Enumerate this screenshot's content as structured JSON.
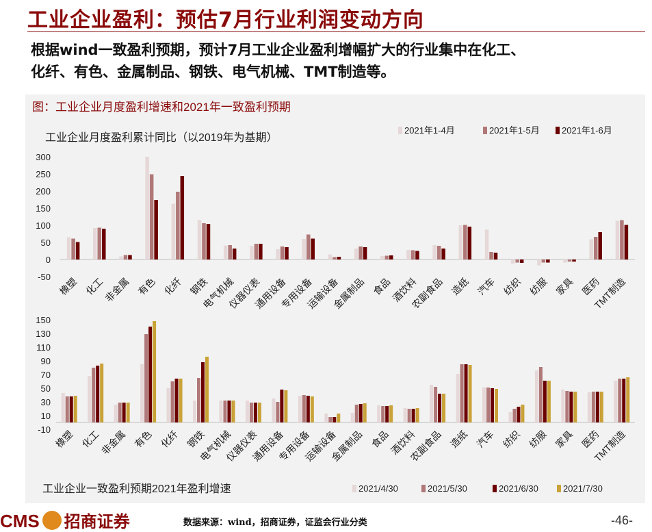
{
  "page": {
    "title": "工业企业盈利：预估7月行业利润变动方向",
    "subtitle_line1": "根据wind一致盈利预期，预计7月工业企业盈利增幅扩大的行业集中在化工、",
    "subtitle_line2": "化纤、有色、金属制品、钢铁、电气机械、TMT制造等。",
    "figure_title": "图：工业企业月度盈利增速和2021年一致盈利预期",
    "footer_logo_text": "CMS",
    "footer_logo_cn": "招商证券",
    "source": "数据来源：wind，招商证券，证监会行业分类",
    "page_number": "-46-"
  },
  "colors": {
    "title": "#8a0a0a",
    "s1": "#e6d8d8",
    "s2": "#b07878",
    "s3": "#6b0000",
    "s4": "#c9a238"
  },
  "chart_data": [
    {
      "type": "bar",
      "title": "工业企业月度盈利累计同比（以2019年为基期）",
      "categories": [
        "橡塑",
        "化工",
        "非金属",
        "有色",
        "化纤",
        "钢铁",
        "电气机械",
        "仪器仪表",
        "通用设备",
        "专用设备",
        "运输设备",
        "金属制品",
        "食品",
        "酒饮料",
        "农副食品",
        "造纸",
        "汽车",
        "纺织",
        "纺服",
        "家具",
        "医药",
        "TMT制造"
      ],
      "series": [
        {
          "name": "2021年1-4月",
          "values": [
            65,
            92,
            9,
            300,
            163,
            115,
            41,
            40,
            30,
            60,
            15,
            32,
            10,
            28,
            42,
            100,
            87,
            -12,
            -17,
            -9,
            59,
            113
          ]
        },
        {
          "name": "2021年1-5月",
          "values": [
            61,
            93,
            13,
            249,
            198,
            106,
            42,
            46,
            38,
            73,
            7,
            38,
            11,
            27,
            40,
            101,
            22,
            -9,
            -9,
            -6,
            66,
            115
          ]
        },
        {
          "name": "2021年1-6月",
          "values": [
            51,
            90,
            13,
            174,
            244,
            104,
            32,
            46,
            36,
            61,
            8,
            36,
            12,
            25,
            32,
            96,
            20,
            -10,
            -9,
            -6,
            80,
            101
          ]
        }
      ],
      "ylim": [
        -50,
        300
      ],
      "yticks": [
        -50,
        0,
        50,
        100,
        150,
        200,
        250,
        300
      ],
      "legend": "top-right"
    },
    {
      "type": "bar",
      "title": "工业企业一致盈利预期2021年盈利增速",
      "categories": [
        "橡塑",
        "化工",
        "非金属",
        "有色",
        "化纤",
        "钢铁",
        "电气机械",
        "仪器仪表",
        "通用设备",
        "专用设备",
        "运输设备",
        "金属制品",
        "食品",
        "酒饮料",
        "农副食品",
        "造纸",
        "汽车",
        "纺织",
        "纺服",
        "家具",
        "医药",
        "TMT制造"
      ],
      "series": [
        {
          "name": "2021/4/30",
          "values": [
            43,
            68,
            26,
            85,
            50,
            32,
            32,
            32,
            35,
            39,
            13,
            14,
            25,
            21,
            55,
            71,
            51,
            15,
            76,
            48,
            44,
            61
          ]
        },
        {
          "name": "2021/5/30",
          "values": [
            38,
            80,
            29,
            129,
            60,
            65,
            32,
            29,
            30,
            40,
            8,
            26,
            24,
            20,
            52,
            85,
            51,
            20,
            81,
            46,
            45,
            64
          ]
        },
        {
          "name": "2021/6/30",
          "values": [
            38,
            83,
            29,
            140,
            64,
            88,
            32,
            29,
            48,
            39,
            8,
            27,
            24,
            20,
            42,
            85,
            50,
            23,
            61,
            45,
            45,
            64
          ]
        },
        {
          "name": "2021/7/30",
          "values": [
            39,
            86,
            29,
            148,
            64,
            96,
            32,
            29,
            47,
            38,
            13,
            28,
            25,
            21,
            42,
            84,
            49,
            26,
            61,
            45,
            45,
            66
          ]
        }
      ],
      "ylim": [
        -10,
        150
      ],
      "yticks": [
        -10,
        10,
        30,
        50,
        70,
        90,
        110,
        130,
        150
      ],
      "legend": "bottom-right"
    }
  ]
}
